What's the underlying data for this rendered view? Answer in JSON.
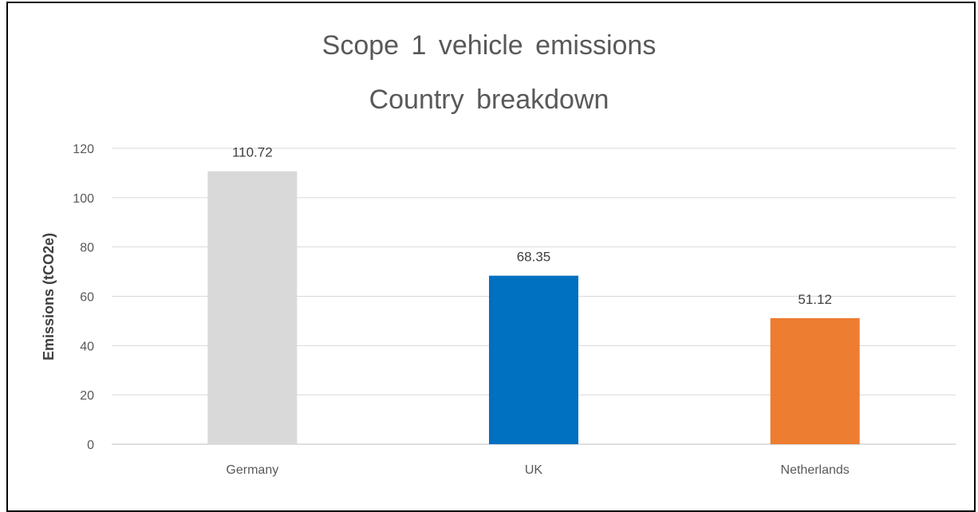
{
  "chart_data": {
    "type": "bar",
    "title_line1": "Scope 1 vehicle emissions",
    "title_line2": "Country breakdown",
    "xlabel": "",
    "ylabel": "Emissions (tCO2e)",
    "categories": [
      "Germany",
      "UK",
      "Netherlands"
    ],
    "values": [
      110.72,
      68.35,
      51.12
    ],
    "data_labels": [
      "110.72",
      "68.35",
      "51.12"
    ],
    "bar_colors": [
      "#D9D9D9",
      "#0070C0",
      "#ED7D31"
    ],
    "ylim": [
      0,
      120
    ],
    "yticks": [
      0,
      20,
      40,
      60,
      80,
      100,
      120
    ],
    "grid": true,
    "legend": "none"
  }
}
